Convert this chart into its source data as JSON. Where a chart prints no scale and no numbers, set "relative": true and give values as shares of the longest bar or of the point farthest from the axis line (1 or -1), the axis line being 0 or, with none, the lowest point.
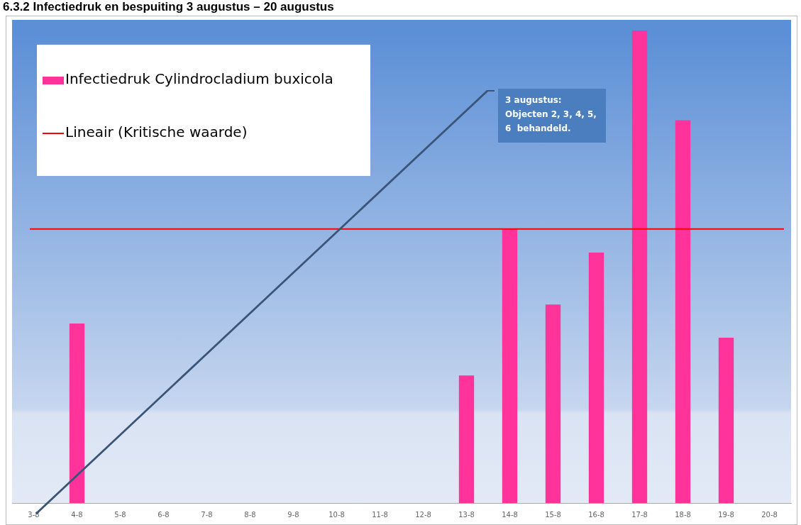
{
  "chart_data": {
    "type": "bar",
    "title": "6.3.2 Infectiedruk en bespuiting 3 augustus – 20 augustus",
    "categories": [
      "3-8",
      "4-8",
      "5-8",
      "6-8",
      "7-8",
      "8-8",
      "9-8",
      "10-8",
      "11-8",
      "12-8",
      "13-8",
      "14-8",
      "15-8",
      "16-8",
      "17-8",
      "18-8",
      "19-8",
      "20-8"
    ],
    "series": [
      {
        "name": "Infectiedruk Cylindrocladium buxicola",
        "color": "#ff3399",
        "values": [
          null,
          0.38,
          null,
          null,
          null,
          null,
          null,
          null,
          null,
          null,
          0.27,
          0.58,
          0.42,
          0.53,
          1,
          0.81,
          0.35,
          null
        ]
      }
    ],
    "relative": true,
    "ref_lines": [
      {
        "axis": "y",
        "value": 0.58,
        "label": "Lineair (Kritische waarde)",
        "color": "#ff0000"
      }
    ],
    "annotations": [
      "3 augustus: Objecten 2, 3, 4, 5, 6  behandeld."
    ],
    "legend": "top left",
    "grid": false
  }
}
